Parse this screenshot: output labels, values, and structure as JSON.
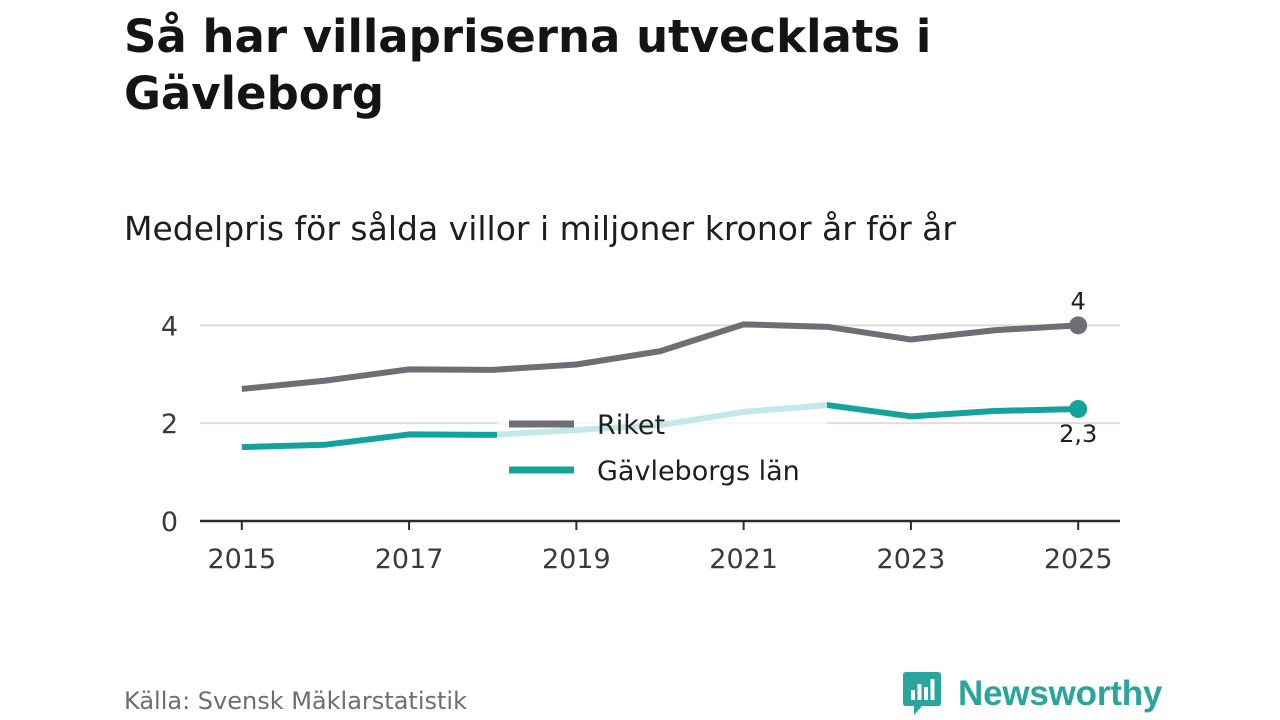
{
  "title": "Så har villapriserna utvecklats i Gävleborg",
  "subtitle": "Medelpris för sålda villor i miljoner kronor år för år",
  "source": "Källa: Svensk Mäklarstatistik",
  "brand": {
    "name": "Newsworthy",
    "icon": "newsworthy-chart-icon",
    "color": "#2aa59c"
  },
  "chart_data": {
    "type": "line",
    "x": [
      2015,
      2016,
      2017,
      2018,
      2019,
      2020,
      2021,
      2022,
      2023,
      2024,
      2025
    ],
    "x_ticks": [
      "2015",
      "2017",
      "2019",
      "2021",
      "2023",
      "2025"
    ],
    "y_ticks": [
      "0",
      "2",
      "4"
    ],
    "ylim": [
      0,
      4.6
    ],
    "xlim": [
      2014.5,
      2025.5
    ],
    "grid": true,
    "legend_position": "center",
    "series": [
      {
        "name": "Riket",
        "color": "#6f6e76",
        "values": [
          2.7,
          2.87,
          3.1,
          3.09,
          3.2,
          3.47,
          4.02,
          3.97,
          3.71,
          3.9,
          4.0
        ],
        "end_label": "4"
      },
      {
        "name": "Gävleborgs län",
        "color": "#14a39a",
        "values": [
          1.51,
          1.56,
          1.77,
          1.76,
          1.86,
          1.96,
          2.23,
          2.37,
          2.14,
          2.25,
          2.29
        ],
        "end_label": "2,3"
      }
    ]
  }
}
